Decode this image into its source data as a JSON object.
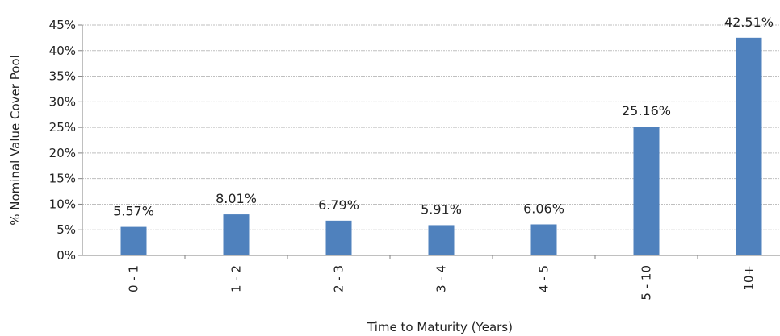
{
  "chart_data": {
    "type": "bar",
    "title": "",
    "xlabel": "Time to Maturity (Years)",
    "ylabel": "% Nominal Value Cover Pool",
    "categories": [
      "0 - 1",
      "1 - 2",
      "2 - 3",
      "3 - 4",
      "4 - 5",
      "5 - 10",
      "10+"
    ],
    "values": [
      5.57,
      8.01,
      6.79,
      5.91,
      6.06,
      25.16,
      42.51
    ],
    "data_labels": [
      "5.57%",
      "8.01%",
      "6.79%",
      "5.91%",
      "6.06%",
      "25.16%",
      "42.51%"
    ],
    "yticks": [
      "0%",
      "5%",
      "10%",
      "15%",
      "20%",
      "25%",
      "30%",
      "35%",
      "40%",
      "45%"
    ],
    "ylim": [
      0,
      45
    ],
    "grid": true,
    "legend": "none",
    "bar_color": "#4f81bd",
    "grid_color": "#bfbfbf"
  }
}
